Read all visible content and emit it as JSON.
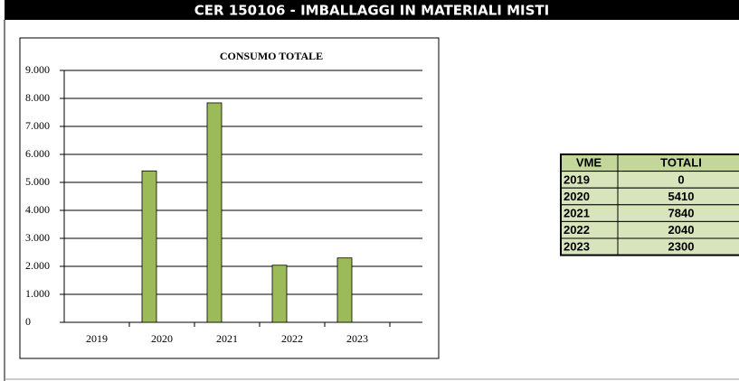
{
  "header": {
    "title": "CER 150106 - IMBALLAGGI IN MATERIALI MISTI"
  },
  "chart_data": {
    "type": "bar",
    "title": "CONSUMO TOTALE",
    "categories": [
      "2019",
      "2020",
      "2021",
      "2022",
      "2023"
    ],
    "values": [
      0,
      5410,
      7840,
      2040,
      2300
    ],
    "color": "#9bbb59",
    "ylim": [
      0,
      9000
    ],
    "yticks": [
      0,
      {
        "value": 1000,
        "label": "1.000"
      },
      {
        "value": 2000,
        "label": "2.000"
      },
      {
        "value": 3000,
        "label": "3.000"
      },
      {
        "value": 4000,
        "label": "4.000"
      },
      {
        "value": 5000,
        "label": "5.000"
      },
      {
        "value": 6000,
        "label": "6.000"
      },
      {
        "value": 7000,
        "label": "7.000"
      },
      {
        "value": 8000,
        "label": "8.000"
      },
      {
        "value": 9000,
        "label": "9.000"
      }
    ],
    "grid": true
  },
  "table": {
    "columns": [
      "VME",
      "TOTALI"
    ],
    "rows": [
      [
        "2019",
        "0"
      ],
      [
        "2020",
        "5410"
      ],
      [
        "2021",
        "7840"
      ],
      [
        "2022",
        "2040"
      ],
      [
        "2023",
        "2300"
      ]
    ]
  }
}
